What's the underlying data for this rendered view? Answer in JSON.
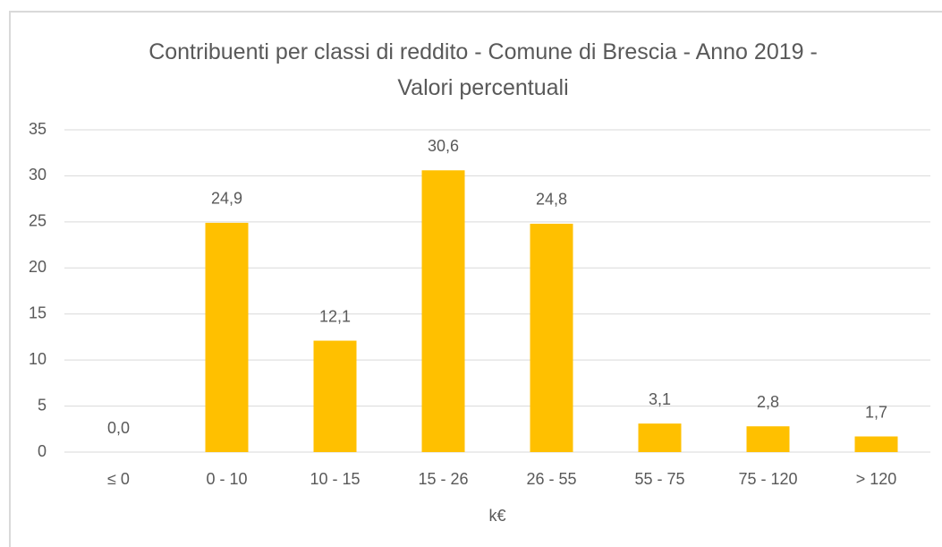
{
  "chart_data": {
    "type": "bar",
    "title": "Contribuenti per classi di reddito - Comune di Brescia - Anno 2019 - Valori percentuali",
    "categories": [
      "≤ 0",
      "0 - 10",
      "10 - 15",
      "15 - 26",
      "26 - 55",
      "55 - 75",
      "75 - 120",
      "> 120"
    ],
    "values": [
      0.0,
      24.9,
      12.1,
      30.6,
      24.8,
      3.1,
      2.8,
      1.7
    ],
    "value_labels": [
      "0,0",
      "24,9",
      "12,1",
      "30,6",
      "24,8",
      "3,1",
      "2,8",
      "1,7"
    ],
    "color": "#ffc000",
    "xlabel": "k€",
    "ylim": [
      0,
      35
    ],
    "yticks": [
      0,
      5,
      10,
      15,
      20,
      25,
      30,
      35
    ],
    "grid": true
  }
}
